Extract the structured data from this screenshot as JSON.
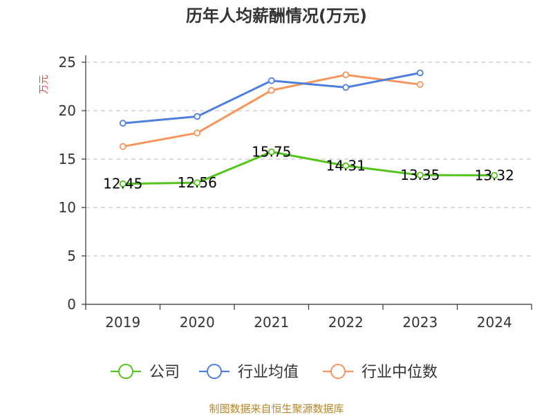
{
  "chart_data": {
    "type": "line",
    "title": "历年人均薪酬情况(万元)",
    "ylabel": "万元",
    "xlabel": "",
    "categories": [
      "2019",
      "2020",
      "2021",
      "2022",
      "2023",
      "2024"
    ],
    "ylim": [
      0,
      25
    ],
    "yticks": [
      0,
      5,
      10,
      15,
      20,
      25
    ],
    "grid": true,
    "legend_position": "bottom",
    "series": [
      {
        "name": "公司",
        "color": "#52c41a",
        "values": [
          12.45,
          12.56,
          15.75,
          14.31,
          13.35,
          13.32
        ],
        "labels": [
          "12.45",
          "12.56",
          "15.75",
          "14.31",
          "13.35",
          "13.32"
        ]
      },
      {
        "name": "行业均值",
        "color": "#4e7fde",
        "values": [
          18.7,
          19.4,
          23.1,
          22.4,
          23.9,
          null
        ]
      },
      {
        "name": "行业中位数",
        "color": "#f7945c",
        "values": [
          16.3,
          17.7,
          22.1,
          23.7,
          22.7,
          null
        ]
      }
    ]
  },
  "source": "制图数据来自恒生聚源数据库"
}
